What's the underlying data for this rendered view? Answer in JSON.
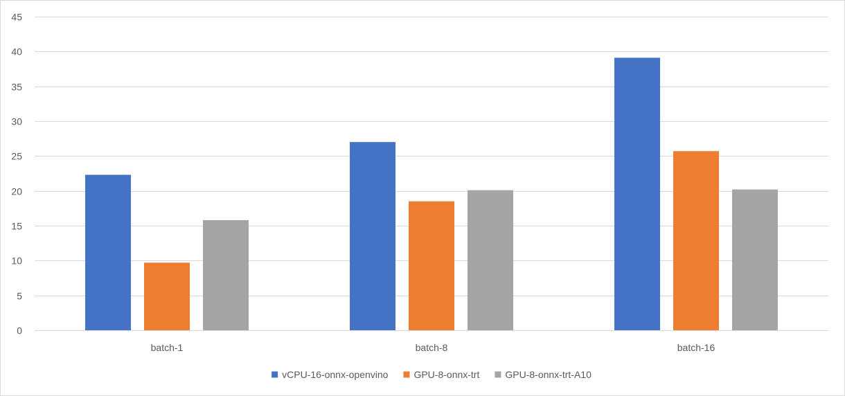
{
  "chart_data": {
    "type": "bar",
    "title": "",
    "xlabel": "",
    "ylabel": "",
    "ylim": [
      0,
      45
    ],
    "yticks": [
      0,
      5,
      10,
      15,
      20,
      25,
      30,
      35,
      40,
      45
    ],
    "grid": true,
    "legend_position": "bottom",
    "categories": [
      "batch-1",
      "batch-8",
      "batch-16"
    ],
    "series": [
      {
        "name": "vCPU-16-onnx-openvino",
        "color": "#4472c4",
        "values": [
          22.3,
          27.0,
          39.1
        ]
      },
      {
        "name": "GPU-8-onnx-trt",
        "color": "#ed7d31",
        "values": [
          9.7,
          18.5,
          25.7
        ]
      },
      {
        "name": "GPU-8-onnx-trt-A10",
        "color": "#a5a5a5",
        "values": [
          15.8,
          20.1,
          20.2
        ]
      }
    ]
  }
}
